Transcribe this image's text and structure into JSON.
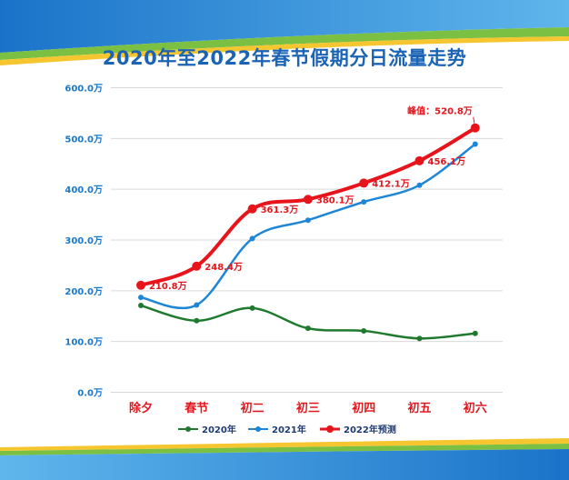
{
  "colors": {
    "series_2020": "#1f7a2e",
    "series_2021": "#1f86d6",
    "series_2022": "#e8141c",
    "title": "#1a63b5",
    "tick_y": "#1a78c8",
    "tick_x": "#e0181e",
    "grid": "#d9d9d9"
  },
  "chart_data": {
    "type": "line",
    "title": "2020年至2022年春节假期分日流量走势",
    "categories": [
      "除夕",
      "春节",
      "初二",
      "初三",
      "初四",
      "初五",
      "初六"
    ],
    "ylim": [
      0,
      600
    ],
    "yticks": [
      0,
      100,
      200,
      300,
      400,
      500,
      600
    ],
    "ytick_labels": [
      "0.0万",
      "100.0万",
      "200.0万",
      "300.0万",
      "400.0万",
      "500.0万",
      "600.0万"
    ],
    "grid": true,
    "legend_position": "bottom",
    "series": [
      {
        "name": "2020年",
        "values": [
          171,
          141,
          166,
          126,
          121,
          106,
          116
        ]
      },
      {
        "name": "2021年",
        "values": [
          187,
          172,
          303,
          339,
          375,
          408,
          489
        ]
      },
      {
        "name": "2022年预测",
        "values": [
          210.8,
          248.4,
          361.3,
          380.1,
          412.1,
          456.1,
          520.8
        ]
      }
    ],
    "data_labels": [
      "210.8万",
      "248.4万",
      "361.3万",
      "380.1万",
      "412.1万",
      "456.1万",
      "峰值：520.8万"
    ]
  }
}
